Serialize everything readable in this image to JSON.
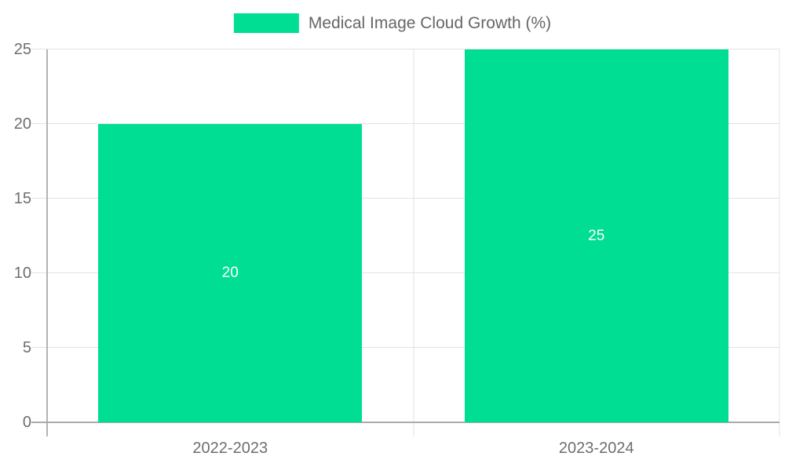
{
  "chart_data": {
    "type": "bar",
    "categories": [
      "2022-2023",
      "2023-2024"
    ],
    "series": [
      {
        "name": "Medical Image Cloud Growth (%)",
        "values": [
          20,
          25
        ]
      }
    ],
    "bar_value_labels": [
      "20",
      "25"
    ],
    "title": "",
    "xlabel": "",
    "ylabel": "",
    "ylim": [
      0,
      25
    ],
    "yticks": [
      0,
      5,
      10,
      15,
      20,
      25
    ],
    "grid": true,
    "legend_position": "top-center",
    "bar_width_fraction": 0.72,
    "colors": {
      "bar": "#00DE94",
      "gridline": "#e3e3e3",
      "axis_line": "#ababab",
      "tick_text": "#6e6e6e",
      "legend_text": "#666666",
      "bar_label_text": "#ffffff",
      "background": "#ffffff"
    }
  },
  "legend": {
    "label": "Medical Image Cloud Growth (%)"
  }
}
